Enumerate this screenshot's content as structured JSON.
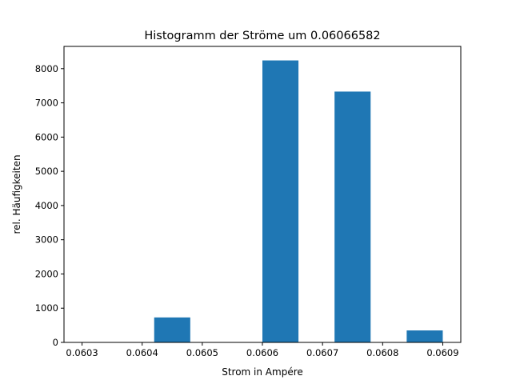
{
  "chart_data": {
    "type": "bar",
    "title": "Histogramm der Ströme um 0.06066582",
    "xlabel": "Strom in Ampére",
    "ylabel": "rel. Häufigkeiten",
    "bar_color": "#1f77b4",
    "xlim": [
      0.06027,
      0.06093
    ],
    "ylim": [
      0,
      8650
    ],
    "xticks": [
      0.0603,
      0.0604,
      0.0605,
      0.0606,
      0.0607,
      0.0608,
      0.0609
    ],
    "xtick_labels": [
      "0.0603",
      "0.0604",
      "0.0605",
      "0.0606",
      "0.0607",
      "0.0608",
      "0.0609"
    ],
    "yticks": [
      0,
      1000,
      2000,
      3000,
      4000,
      5000,
      6000,
      7000,
      8000
    ],
    "ytick_labels": [
      "0",
      "1000",
      "2000",
      "3000",
      "4000",
      "5000",
      "6000",
      "7000",
      "8000"
    ],
    "bins": [
      {
        "start": 0.0603,
        "end": 0.06036,
        "value": 0
      },
      {
        "start": 0.06036,
        "end": 0.06042,
        "value": 0
      },
      {
        "start": 0.06042,
        "end": 0.06048,
        "value": 730
      },
      {
        "start": 0.06048,
        "end": 0.06054,
        "value": 0
      },
      {
        "start": 0.06054,
        "end": 0.0606,
        "value": 0
      },
      {
        "start": 0.0606,
        "end": 0.06066,
        "value": 8240
      },
      {
        "start": 0.06066,
        "end": 0.06072,
        "value": 0
      },
      {
        "start": 0.06072,
        "end": 0.06078,
        "value": 7330
      },
      {
        "start": 0.06078,
        "end": 0.06084,
        "value": 0
      },
      {
        "start": 0.06084,
        "end": 0.0609,
        "value": 350
      }
    ]
  }
}
